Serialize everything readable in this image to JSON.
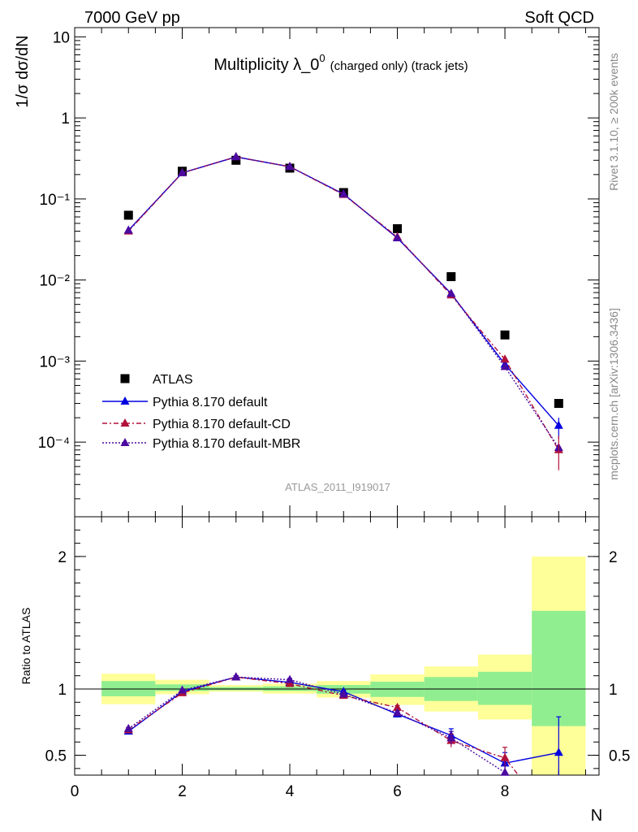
{
  "header": {
    "left": "7000 GeV pp",
    "right": "Soft QCD"
  },
  "side_labels": {
    "rivet": "Rivet 3.1.10, ≥ 200k events",
    "mcplots": "mcplots.cern.ch [arXiv:1306.3436]"
  },
  "watermark": "ATLAS_2011_I919017",
  "colors": {
    "atlas": "#000000",
    "default": "#0000e0",
    "cd": "#b0103a",
    "mbr": "#4b0aa0",
    "band_inner": "#90ee90",
    "band_outer": "#ffff99"
  },
  "chart_data": [
    {
      "type": "scatter",
      "title_main": "Multiplicity λ_0",
      "title_sup": "0",
      "title_suffix": "(charged only) (track jets)",
      "ylabel": "1/σ dσ/dN",
      "yscale": "log",
      "ylim": [
        1.2e-05,
        13
      ],
      "xlim": [
        0,
        9.75
      ],
      "y_tick_labels": [
        "10",
        "1",
        "10⁻¹",
        "10⁻²",
        "10⁻³",
        "10⁻⁴"
      ],
      "legend_position": "lower-left",
      "series": [
        {
          "name": "ATLAS",
          "style": "square",
          "x": [
            1,
            2,
            3,
            4,
            5,
            6,
            7,
            8,
            9
          ],
          "y": [
            0.063,
            0.22,
            0.3,
            0.24,
            0.12,
            0.043,
            0.011,
            0.0021,
            0.0003
          ]
        },
        {
          "name": "Pythia 8.170 default",
          "style": "solid",
          "x": [
            1,
            2,
            3,
            4,
            5,
            6,
            7,
            8,
            9
          ],
          "y": [
            0.041,
            0.21,
            0.33,
            0.25,
            0.115,
            0.033,
            0.0068,
            0.00091,
            0.00016
          ]
        },
        {
          "name": "Pythia 8.170 default-CD",
          "style": "dashdot",
          "x": [
            1,
            2,
            3,
            4,
            5,
            6,
            7,
            8,
            9
          ],
          "y": [
            0.04,
            0.21,
            0.33,
            0.25,
            0.113,
            0.034,
            0.0065,
            0.00105,
            8e-05
          ]
        },
        {
          "name": "Pythia 8.170 default-MBR",
          "style": "dotted",
          "x": [
            1,
            2,
            3,
            4,
            5,
            6,
            7,
            8,
            9
          ],
          "y": [
            0.041,
            0.21,
            0.33,
            0.25,
            0.115,
            0.033,
            0.0068,
            0.00085,
            8.5e-05
          ]
        }
      ]
    },
    {
      "type": "scatter",
      "ylabel": "Ratio to ATLAS",
      "xlabel": "N",
      "ylim": [
        0.35,
        2.3
      ],
      "xlim": [
        0,
        9.75
      ],
      "x_ticks": [
        0,
        2,
        4,
        6,
        8
      ],
      "y_ticks": [
        0.5,
        1,
        2
      ],
      "reference": 1,
      "bands": [
        {
          "x0": 0.5,
          "x1": 1.5,
          "inner": [
            0.945,
            1.06
          ],
          "outer": [
            0.885,
            1.115
          ]
        },
        {
          "x0": 1.5,
          "x1": 2.5,
          "inner": [
            0.985,
            1.035
          ],
          "outer": [
            0.96,
            1.07
          ]
        },
        {
          "x0": 2.5,
          "x1": 3.5,
          "inner": [
            0.99,
            1.015
          ],
          "outer": [
            0.98,
            1.03
          ]
        },
        {
          "x0": 3.5,
          "x1": 4.5,
          "inner": [
            0.985,
            1.02
          ],
          "outer": [
            0.965,
            1.04
          ]
        },
        {
          "x0": 4.5,
          "x1": 5.5,
          "inner": [
            0.965,
            1.03
          ],
          "outer": [
            0.935,
            1.06
          ]
        },
        {
          "x0": 5.5,
          "x1": 6.5,
          "inner": [
            0.94,
            1.055
          ],
          "outer": [
            0.88,
            1.11
          ]
        },
        {
          "x0": 6.5,
          "x1": 7.5,
          "inner": [
            0.91,
            1.09
          ],
          "outer": [
            0.83,
            1.17
          ]
        },
        {
          "x0": 7.5,
          "x1": 8.5,
          "inner": [
            0.88,
            1.13
          ],
          "outer": [
            0.77,
            1.26
          ]
        },
        {
          "x0": 8.5,
          "x1": 9.5,
          "inner": [
            0.72,
            1.59
          ],
          "outer": [
            0.35,
            2.0
          ]
        }
      ],
      "series": [
        {
          "name": "Pythia 8.170 default",
          "style": "solid",
          "x": [
            1,
            2,
            3,
            4,
            5,
            6,
            7,
            8,
            9
          ],
          "y": [
            0.68,
            0.98,
            1.09,
            1.05,
            0.98,
            0.81,
            0.65,
            0.44,
            0.52
          ],
          "err": [
            0.01,
            0.01,
            0.01,
            0.01,
            0.01,
            0.015,
            0.05,
            0.08,
            0.27
          ]
        },
        {
          "name": "Pythia 8.170 default-CD",
          "style": "dashdot",
          "x": [
            1,
            2,
            3,
            4,
            5,
            6,
            7,
            8,
            8.25
          ],
          "y": [
            0.69,
            0.97,
            1.09,
            1.04,
            0.95,
            0.86,
            0.61,
            0.48,
            0.35
          ],
          "err": [
            0.01,
            0.01,
            0.01,
            0.01,
            0.01,
            0.015,
            0.05,
            0.08,
            0
          ]
        },
        {
          "name": "Pythia 8.170 default-MBR",
          "style": "dotted",
          "x": [
            1,
            2,
            3,
            4,
            5,
            6,
            7,
            8
          ],
          "y": [
            0.7,
            0.99,
            1.09,
            1.07,
            0.96,
            0.82,
            0.63,
            0.37
          ],
          "err": [
            0.01,
            0.01,
            0.01,
            0.01,
            0.01,
            0.015,
            0.05,
            0.05
          ]
        }
      ]
    }
  ]
}
